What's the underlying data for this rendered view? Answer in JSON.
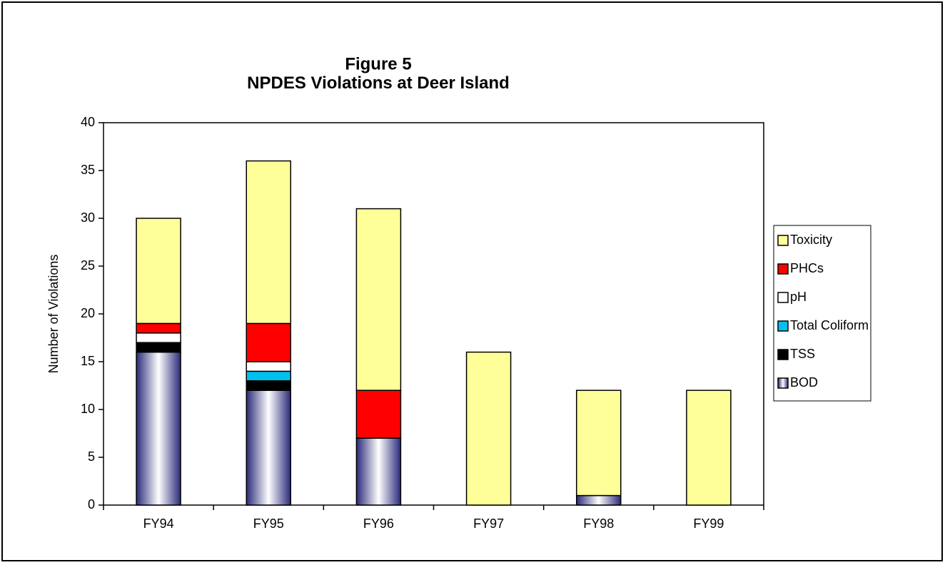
{
  "chart_data": {
    "type": "stacked_bar",
    "title": "Figure 5",
    "subtitle": "NPDES Violations at Deer Island",
    "y_label": "Number of Violations",
    "categories": [
      "FY94",
      "FY95",
      "FY96",
      "FY97",
      "FY98",
      "FY99"
    ],
    "series": [
      {
        "name": "BOD",
        "color": "#2a2a7a",
        "values": [
          16,
          12,
          7,
          0,
          1,
          0
        ]
      },
      {
        "name": "TSS",
        "color": "#000000",
        "values": [
          1,
          1,
          0,
          0,
          0,
          0
        ]
      },
      {
        "name": "Total Coliform",
        "color": "#00c0f0",
        "values": [
          0,
          1,
          0,
          0,
          0,
          0
        ]
      },
      {
        "name": "pH",
        "color": "#ffffff",
        "values": [
          1,
          1,
          0,
          0,
          0,
          0
        ]
      },
      {
        "name": "PHCs",
        "color": "#ff0000",
        "values": [
          1,
          4,
          5,
          0,
          0,
          0
        ]
      },
      {
        "name": "Toxicity",
        "color": "#ffff99",
        "values": [
          11,
          17,
          19,
          16,
          11,
          12
        ]
      }
    ],
    "ylim": [
      0,
      40
    ],
    "yticks": [
      0,
      5,
      10,
      15,
      20,
      25,
      30,
      35,
      40
    ],
    "grid": false,
    "legend": "right"
  }
}
